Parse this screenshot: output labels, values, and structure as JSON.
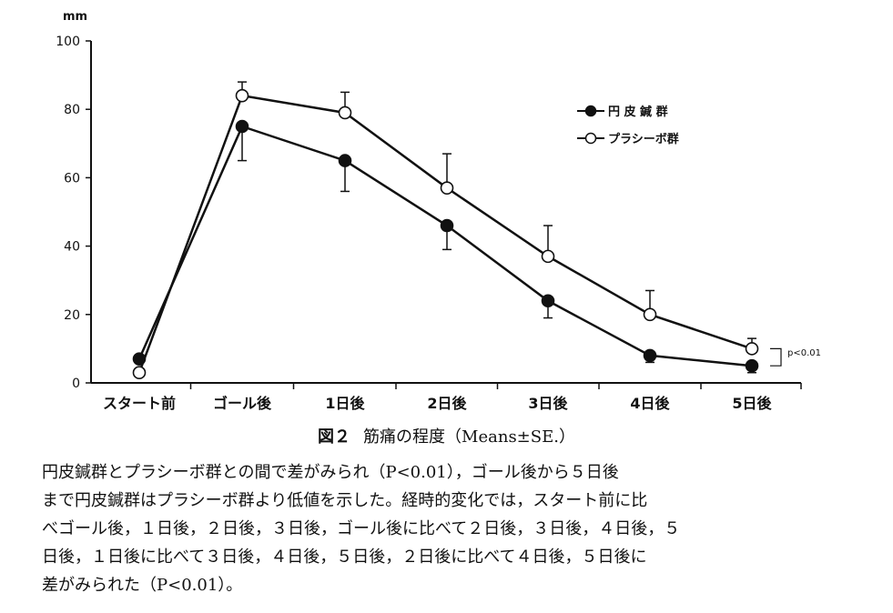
{
  "chart_data": {
    "type": "line",
    "ylabel": "mm",
    "ylim": [
      0,
      100
    ],
    "yticks": [
      0,
      20,
      40,
      60,
      80,
      100
    ],
    "categories": [
      "スタート前",
      "ゴール後",
      "1日後",
      "2日後",
      "3日後",
      "4日後",
      "5日後"
    ],
    "series": [
      {
        "name": "円 皮 鍼  群",
        "marker": "filled-circle",
        "values": [
          7,
          75,
          65,
          46,
          24,
          8,
          5
        ],
        "errors": [
          null,
          10,
          9,
          7,
          5,
          2,
          2
        ]
      },
      {
        "name": "プラシーボ群",
        "marker": "open-circle",
        "values": [
          3,
          84,
          79,
          57,
          37,
          20,
          10
        ],
        "errors": [
          null,
          4,
          6,
          10,
          9,
          7,
          3
        ]
      }
    ],
    "legend_position": "top-right",
    "annotation": "p<0.01",
    "grid": false
  },
  "caption": {
    "label": "図２",
    "text": "筋痛の程度（Means±SE.）"
  },
  "body_lines": [
    "円皮鍼群とプラシーボ群との間で差がみられ（P<0.01），ゴール後から５日後",
    "まで円皮鍼群はプラシーボ群より低値を示した。経時的変化では，スタート前に比",
    "べゴール後，１日後，２日後，３日後，ゴール後に比べて２日後，３日後，４日後，５",
    "日後，１日後に比べて３日後，４日後，５日後，２日後に比べて４日後，５日後に",
    "差がみられた（P<0.01）。"
  ],
  "colors": {
    "ink": "#111111",
    "background": "#ffffff"
  }
}
